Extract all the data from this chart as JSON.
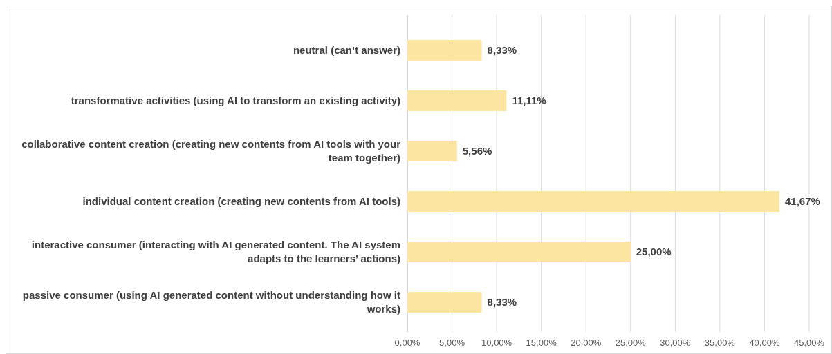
{
  "chart_data": {
    "type": "bar",
    "orientation": "horizontal",
    "categories": [
      "neutral (can’t answer)",
      "transformative activities (using AI to transform an existing activity)",
      "collaborative content creation (creating new contents from AI tools with your team together)",
      "individual content creation (creating new contents from AI tools)",
      "interactive consumer (interacting with AI generated content. The AI system adapts to the learners’ actions)",
      "passive consumer (using AI generated content without understanding how it works)"
    ],
    "values": [
      8.33,
      11.11,
      5.56,
      41.67,
      25.0,
      8.33
    ],
    "value_labels": [
      "8,33%",
      "11,11%",
      "5,56%",
      "41,67%",
      "25,00%",
      "8,33%"
    ],
    "color": "#fbe5a1",
    "xlim": [
      0,
      45
    ],
    "xticks": [
      {
        "value": 0,
        "label": "0,00%"
      },
      {
        "value": 5,
        "label": "5,00%"
      },
      {
        "value": 10,
        "label": "10,00%"
      },
      {
        "value": 15,
        "label": "15,00%"
      },
      {
        "value": 20,
        "label": "20,00%"
      },
      {
        "value": 25,
        "label": "25,00%"
      },
      {
        "value": 30,
        "label": "30,00%"
      },
      {
        "value": 35,
        "label": "35,00%"
      },
      {
        "value": 40,
        "label": "40,00%"
      },
      {
        "value": 45,
        "label": "45,00%"
      }
    ],
    "grid": "x"
  }
}
